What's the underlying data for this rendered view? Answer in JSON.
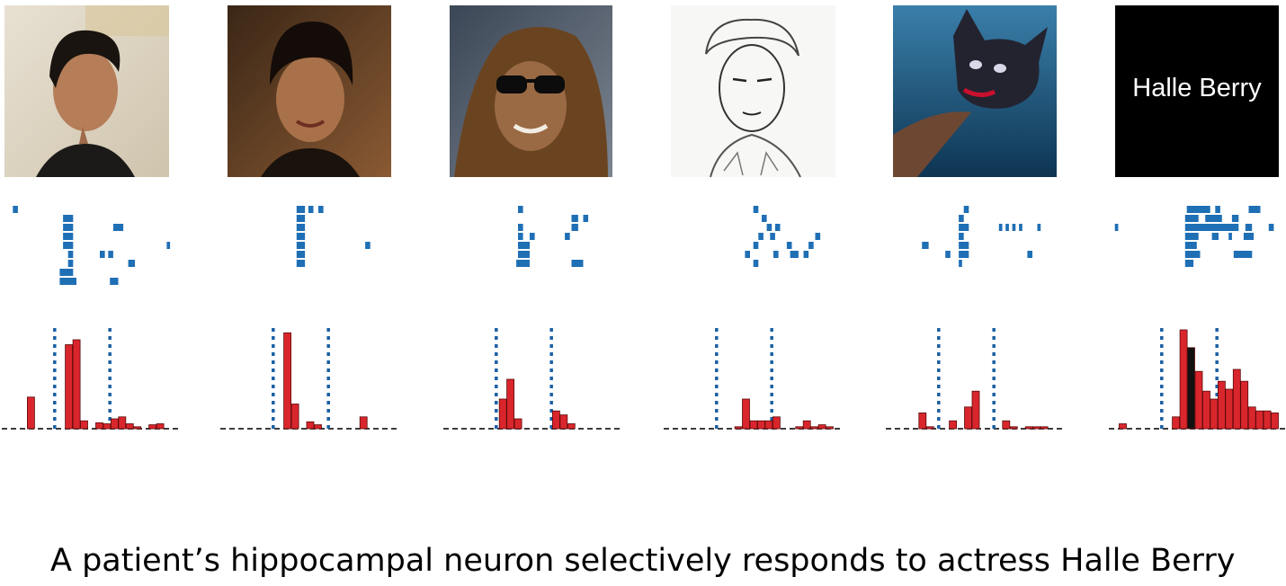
{
  "caption": "A patient’s hippocampal neuron selectively responds to actress Halle Berry",
  "colors": {
    "raster": "#1f6fb5",
    "bar_fill": "#d9262c",
    "bar_fill_dark": "#111111",
    "stim_line": "#1b5fa3",
    "baseline": "#222222",
    "name_card_bg": "#000000",
    "name_card_text": "#ffffff"
  },
  "stimuli": [
    {
      "id": "photo-1",
      "kind": "photo",
      "icon": "woman-profile-photo-icon",
      "raster": [
        [
          [
            0.05,
            0.08
          ]
        ],
        [
          [
            0.35,
            0.41
          ]
        ],
        [
          [
            0.35,
            0.41
          ],
          [
            0.65,
            0.71
          ]
        ],
        [
          [
            0.35,
            0.41
          ]
        ],
        [
          [
            0.35,
            0.41
          ],
          [
            0.97,
            0.99
          ]
        ],
        [
          [
            0.38,
            0.41
          ],
          [
            0.57,
            0.6
          ],
          [
            0.62,
            0.65
          ]
        ],
        [
          [
            0.38,
            0.41
          ],
          [
            0.74,
            0.78
          ]
        ],
        [
          [
            0.33,
            0.41
          ]
        ],
        [
          [
            0.33,
            0.43
          ],
          [
            0.63,
            0.68
          ]
        ]
      ],
      "psth": [
        0,
        0,
        0,
        0.32,
        0,
        0,
        0,
        0,
        0.85,
        0.9,
        0.08,
        0,
        0.06,
        0.05,
        0.1,
        0.12,
        0.05,
        0.02,
        0,
        0.04,
        0.05,
        0
      ]
    },
    {
      "id": "photo-2",
      "kind": "photo",
      "icon": "woman-smiling-photo-icon",
      "raster": [
        [
          [
            0.44,
            0.49
          ],
          [
            0.51,
            0.54
          ],
          [
            0.57,
            0.6
          ]
        ],
        [
          [
            0.44,
            0.49
          ]
        ],
        [
          [
            0.44,
            0.49
          ]
        ],
        [
          [
            0.44,
            0.49
          ]
        ],
        [
          [
            0.44,
            0.49
          ],
          [
            0.85,
            0.88
          ]
        ],
        [
          [
            0.44,
            0.49
          ]
        ],
        [
          [
            0.44,
            0.49
          ]
        ]
      ],
      "psth": [
        0,
        0,
        0,
        0,
        0,
        0,
        0,
        0,
        0.97,
        0.25,
        0,
        0.07,
        0.04,
        0,
        0,
        0,
        0,
        0,
        0.12,
        0,
        0,
        0
      ]
    },
    {
      "id": "photo-3",
      "kind": "photo",
      "icon": "woman-sunglasses-photo-icon",
      "raster": [
        [
          [
            0.43,
            0.46
          ]
        ],
        [
          [
            0.75,
            0.79
          ],
          [
            0.82,
            0.85
          ]
        ],
        [
          [
            0.43,
            0.46
          ],
          [
            0.75,
            0.79
          ]
        ],
        [
          [
            0.43,
            0.46
          ],
          [
            0.5,
            0.53
          ],
          [
            0.71,
            0.74
          ]
        ],
        [
          [
            0.43,
            0.5
          ]
        ],
        [
          [
            0.43,
            0.5
          ]
        ],
        [
          [
            0.42,
            0.5
          ],
          [
            0.75,
            0.82
          ]
        ]
      ],
      "psth": [
        0,
        0,
        0,
        0,
        0,
        0,
        0,
        0.3,
        0.5,
        0.1,
        0,
        0,
        0,
        0,
        0.18,
        0.14,
        0.05,
        0,
        0,
        0,
        0,
        0
      ]
    },
    {
      "id": "photo-4",
      "kind": "sketch",
      "icon": "pencil-sketch-portrait-icon",
      "raster": [
        [
          [
            0.52,
            0.55
          ]
        ],
        [
          [
            0.57,
            0.6
          ]
        ],
        [
          [
            0.6,
            0.63
          ],
          [
            0.65,
            0.68
          ]
        ],
        [
          [
            0.55,
            0.58
          ],
          [
            0.62,
            0.65
          ],
          [
            0.89,
            0.92
          ]
        ],
        [
          [
            0.52,
            0.55
          ],
          [
            0.72,
            0.75
          ],
          [
            0.85,
            0.88
          ]
        ],
        [
          [
            0.47,
            0.5
          ],
          [
            0.64,
            0.67
          ],
          [
            0.74,
            0.79
          ],
          [
            0.82,
            0.85
          ]
        ],
        [
          [
            0.52,
            0.55
          ]
        ]
      ],
      "psth": [
        0,
        0,
        0,
        0,
        0,
        0,
        0,
        0,
        0,
        0.02,
        0.3,
        0.08,
        0.08,
        0.08,
        0.12,
        0,
        0,
        0.02,
        0.08,
        0.02,
        0.04,
        0.02
      ]
    },
    {
      "id": "photo-5",
      "kind": "photo",
      "icon": "catwoman-mask-photo-icon",
      "raster": [
        [
          [
            0.45,
            0.48
          ]
        ],
        [
          [
            0.42,
            0.45
          ]
        ],
        [
          [
            0.42,
            0.48
          ],
          [
            0.66,
            0.68
          ],
          [
            0.7,
            0.72
          ],
          [
            0.74,
            0.76
          ],
          [
            0.78,
            0.8
          ],
          [
            0.89,
            0.91
          ]
        ],
        [
          [
            0.42,
            0.45
          ]
        ],
        [
          [
            0.2,
            0.24
          ],
          [
            0.42,
            0.48
          ]
        ],
        [
          [
            0.34,
            0.37
          ],
          [
            0.42,
            0.48
          ],
          [
            0.83,
            0.86
          ]
        ],
        [
          [
            0.42,
            0.44
          ]
        ]
      ],
      "psth": [
        0,
        0,
        0,
        0,
        0.16,
        0.02,
        0,
        0,
        0.08,
        0,
        0.22,
        0.38,
        0,
        0,
        0,
        0.08,
        0.02,
        0,
        0.02,
        0.02,
        0.02,
        0
      ]
    },
    {
      "id": "name-card",
      "kind": "text",
      "text": "Halle Berry",
      "icon": "name-text-card-icon",
      "raster": [
        [
          [
            0.45,
            0.59
          ],
          [
            0.62,
            0.65
          ],
          [
            0.82,
            0.89
          ]
        ],
        [
          [
            0.44,
            0.52
          ],
          [
            0.56,
            0.66
          ],
          [
            0.72,
            0.76
          ]
        ],
        [
          [
            0.02,
            0.04
          ],
          [
            0.44,
            0.76
          ],
          [
            0.8,
            0.84
          ],
          [
            0.94,
            0.97
          ]
        ],
        [
          [
            0.44,
            0.52
          ],
          [
            0.6,
            0.64
          ],
          [
            0.7,
            0.72
          ],
          [
            0.79,
            0.85
          ]
        ],
        [
          [
            0.44,
            0.51
          ]
        ],
        [
          [
            0.44,
            0.53
          ],
          [
            0.73,
            0.84
          ]
        ],
        [
          [
            0.44,
            0.49
          ]
        ]
      ],
      "psth": [
        0,
        0.05,
        0,
        0,
        0,
        0,
        0,
        0,
        0.12,
        1.0,
        0.82,
        0.58,
        0.38,
        0.3,
        0.48,
        0.4,
        0.6,
        0.48,
        0.22,
        0.18,
        0.18,
        0.16
      ],
      "psth_dark_index": 10
    }
  ]
}
